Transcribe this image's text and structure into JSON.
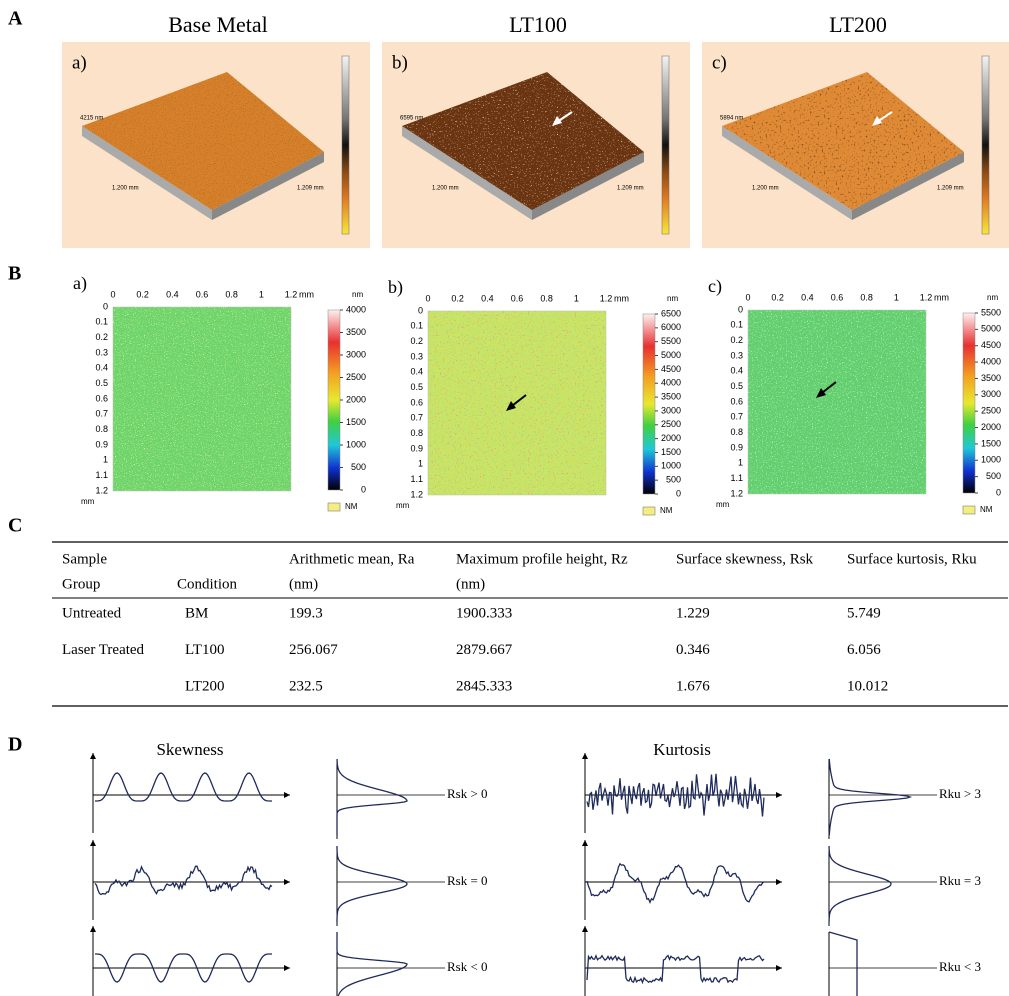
{
  "panel_labels": [
    "A",
    "B",
    "C",
    "D"
  ],
  "surfaces": [
    {
      "label": "a)",
      "title": "Base Metal",
      "height": "4215 nm",
      "x_length": "1.200 mm",
      "y_length": "1.209 mm"
    },
    {
      "label": "b)",
      "title": "LT100",
      "height": "6595 nm",
      "x_length": "1.200 mm",
      "y_length": "1.209 mm"
    },
    {
      "label": "c)",
      "title": "LT200",
      "height": "5894 nm",
      "x_length": "1.200 mm",
      "y_length": "1.209 mm"
    }
  ],
  "maps": {
    "xticks": [
      0,
      0.2,
      0.4,
      0.6,
      0.8,
      1,
      1.2
    ],
    "yticks": [
      0,
      0.1,
      0.2,
      0.3,
      0.4,
      0.5,
      0.6,
      0.7,
      0.8,
      0.9,
      1,
      1.1,
      1.2
    ],
    "unit": "mm",
    "panels": [
      {
        "label": "a)",
        "colorbar_unit": "nm",
        "legend": "NM",
        "colorbar_ticks": [
          0,
          500,
          1000,
          1500,
          2000,
          2500,
          3000,
          3500,
          4000
        ]
      },
      {
        "label": "b)",
        "colorbar_unit": "nm",
        "legend": "NM",
        "colorbar_ticks": [
          0,
          500,
          1000,
          1500,
          2000,
          2500,
          3000,
          3500,
          4000,
          4500,
          5000,
          5500,
          6000,
          6500
        ]
      },
      {
        "label": "c)",
        "colorbar_unit": "nm",
        "legend": "NM",
        "colorbar_ticks": [
          0,
          500,
          1000,
          1500,
          2000,
          2500,
          3000,
          3500,
          4000,
          4500,
          5000,
          5500
        ]
      }
    ]
  },
  "table": {
    "header": {
      "row1": [
        "Sample",
        "Arithmetic mean, Ra",
        "Maximum profile height, Rz",
        "Surface skewness, Rsk",
        "Surface kurtosis, Rku"
      ],
      "row2": [
        "Group",
        "Condition",
        "(nm)",
        "(nm)"
      ]
    },
    "rows": [
      {
        "group": "Untreated",
        "condition": "BM",
        "ra": 199.3,
        "rz": 1900.333,
        "rsk": 1.229,
        "rku": 5.749
      },
      {
        "group": "Laser Treated",
        "condition": "LT100",
        "ra": 256.067,
        "rz": 2879.667,
        "rsk": 0.346,
        "rku": 6.056
      },
      {
        "condition": "LT200",
        "ra": 232.5,
        "rz": 2845.333,
        "rsk": 1.676,
        "rku": 10.012
      }
    ]
  },
  "diagrams": {
    "skewness": {
      "title": "Skewness",
      "cases": [
        "Rsk > 0",
        "Rsk = 0",
        "Rsk < 0"
      ]
    },
    "kurtosis": {
      "title": "Kurtosis",
      "cases": [
        "Rku > 3",
        "Rku = 3",
        "Rku < 3"
      ]
    }
  }
}
